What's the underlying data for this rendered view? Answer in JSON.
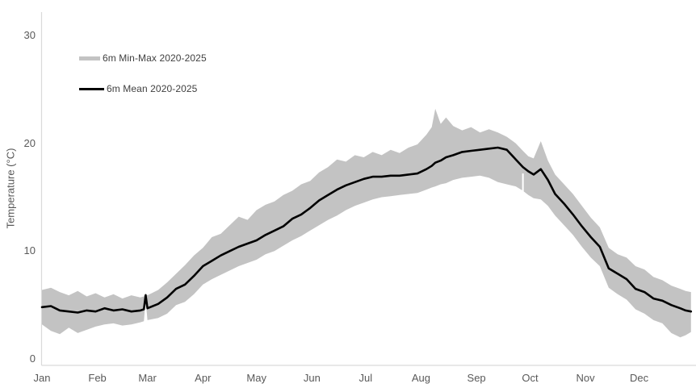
{
  "chart_data": {
    "type": "line",
    "title": "",
    "xlabel": "",
    "ylabel": "Temperature (°C)",
    "x_unit": "day_of_year",
    "x_ticks": [
      "Jan",
      "Feb",
      "Mar",
      "Apr",
      "May",
      "Jun",
      "Jul",
      "Aug",
      "Sep",
      "Oct",
      "Nov",
      "Dec"
    ],
    "month_start_days": [
      1,
      32,
      60,
      91,
      121,
      152,
      182,
      213,
      244,
      274,
      305,
      335
    ],
    "y_ticks": [
      0,
      10,
      20,
      30
    ],
    "ylim": [
      -0.6,
      32.2
    ],
    "grid": false,
    "legend_position": "top-left-inside",
    "axis_color": "#d9d9d9",
    "tick_label_color": "#595959",
    "days": [
      1,
      6,
      11,
      16,
      21,
      26,
      31,
      36,
      41,
      46,
      51,
      56,
      58,
      59,
      60,
      66,
      71,
      76,
      81,
      86,
      91,
      96,
      101,
      106,
      111,
      116,
      121,
      126,
      131,
      136,
      141,
      146,
      151,
      156,
      161,
      166,
      171,
      176,
      181,
      186,
      191,
      196,
      201,
      206,
      211,
      216,
      219,
      221,
      224,
      227,
      231,
      236,
      241,
      246,
      251,
      256,
      261,
      266,
      270,
      273,
      276,
      280,
      284,
      288,
      293,
      298,
      303,
      308,
      313,
      318,
      323,
      328,
      333,
      338,
      343,
      348,
      353,
      358,
      361,
      364
    ],
    "series": [
      {
        "name": "6m Min-Max 2020-2025",
        "type": "band",
        "color": "#c3c3c3",
        "min": [
          3.2,
          2.6,
          2.3,
          2.9,
          2.4,
          2.7,
          3.0,
          3.2,
          3.3,
          3.1,
          3.2,
          3.4,
          3.5,
          5.5,
          3.6,
          3.8,
          4.2,
          5.0,
          5.3,
          6.0,
          6.9,
          7.4,
          7.8,
          8.2,
          8.6,
          8.9,
          9.2,
          9.7,
          10.0,
          10.5,
          11.0,
          11.4,
          11.9,
          12.4,
          12.9,
          13.3,
          13.8,
          14.2,
          14.5,
          14.8,
          15.0,
          15.1,
          15.2,
          15.3,
          15.4,
          15.7,
          15.9,
          16.0,
          16.2,
          16.3,
          16.6,
          16.8,
          16.9,
          17.0,
          16.8,
          16.4,
          16.2,
          16.0,
          15.6,
          15.2,
          14.9,
          14.8,
          14.2,
          13.3,
          12.4,
          11.5,
          10.4,
          9.4,
          8.6,
          6.6,
          6.0,
          5.5,
          4.6,
          4.2,
          3.6,
          3.3,
          2.4,
          2.0,
          2.2,
          2.5
        ],
        "max": [
          6.4,
          6.6,
          6.2,
          5.9,
          6.3,
          5.8,
          6.1,
          5.7,
          6.0,
          5.6,
          5.9,
          5.7,
          5.8,
          6.1,
          5.9,
          6.4,
          7.1,
          7.9,
          8.7,
          9.6,
          10.3,
          11.3,
          11.6,
          12.4,
          13.2,
          12.9,
          13.8,
          14.3,
          14.6,
          15.2,
          15.6,
          16.2,
          16.5,
          17.3,
          17.8,
          18.5,
          18.3,
          18.9,
          18.7,
          19.2,
          18.9,
          19.4,
          19.1,
          19.6,
          19.9,
          20.8,
          21.5,
          23.2,
          21.8,
          22.4,
          21.6,
          21.2,
          21.5,
          21.0,
          21.3,
          21.0,
          20.6,
          20.0,
          19.3,
          18.8,
          18.6,
          20.2,
          18.4,
          17.1,
          16.2,
          15.3,
          14.2,
          13.1,
          12.2,
          10.3,
          9.7,
          9.4,
          8.6,
          8.3,
          7.6,
          7.3,
          6.8,
          6.5,
          6.3,
          6.2
        ]
      },
      {
        "name": "6m Mean 2020-2025",
        "type": "line",
        "color": "#000000",
        "values": [
          4.8,
          4.9,
          4.5,
          4.4,
          4.3,
          4.5,
          4.4,
          4.7,
          4.5,
          4.6,
          4.4,
          4.5,
          4.6,
          5.9,
          4.7,
          5.1,
          5.7,
          6.5,
          6.9,
          7.7,
          8.6,
          9.1,
          9.6,
          10.0,
          10.4,
          10.7,
          11.0,
          11.5,
          11.9,
          12.3,
          13.0,
          13.4,
          14.0,
          14.7,
          15.2,
          15.7,
          16.1,
          16.4,
          16.7,
          16.9,
          16.9,
          17.0,
          17.0,
          17.1,
          17.2,
          17.6,
          17.9,
          18.2,
          18.4,
          18.7,
          18.9,
          19.2,
          19.3,
          19.4,
          19.5,
          19.6,
          19.4,
          18.5,
          17.8,
          17.4,
          17.1,
          17.6,
          16.6,
          15.3,
          14.4,
          13.4,
          12.3,
          11.3,
          10.4,
          8.4,
          7.9,
          7.4,
          6.5,
          6.2,
          5.6,
          5.4,
          5.0,
          4.7,
          4.5,
          4.4
        ]
      }
    ],
    "data_gaps": [
      {
        "day": 59,
        "from": 5.6,
        "to": 2.2
      },
      {
        "day": 270,
        "from": 17.2,
        "to": 13.8
      }
    ]
  }
}
